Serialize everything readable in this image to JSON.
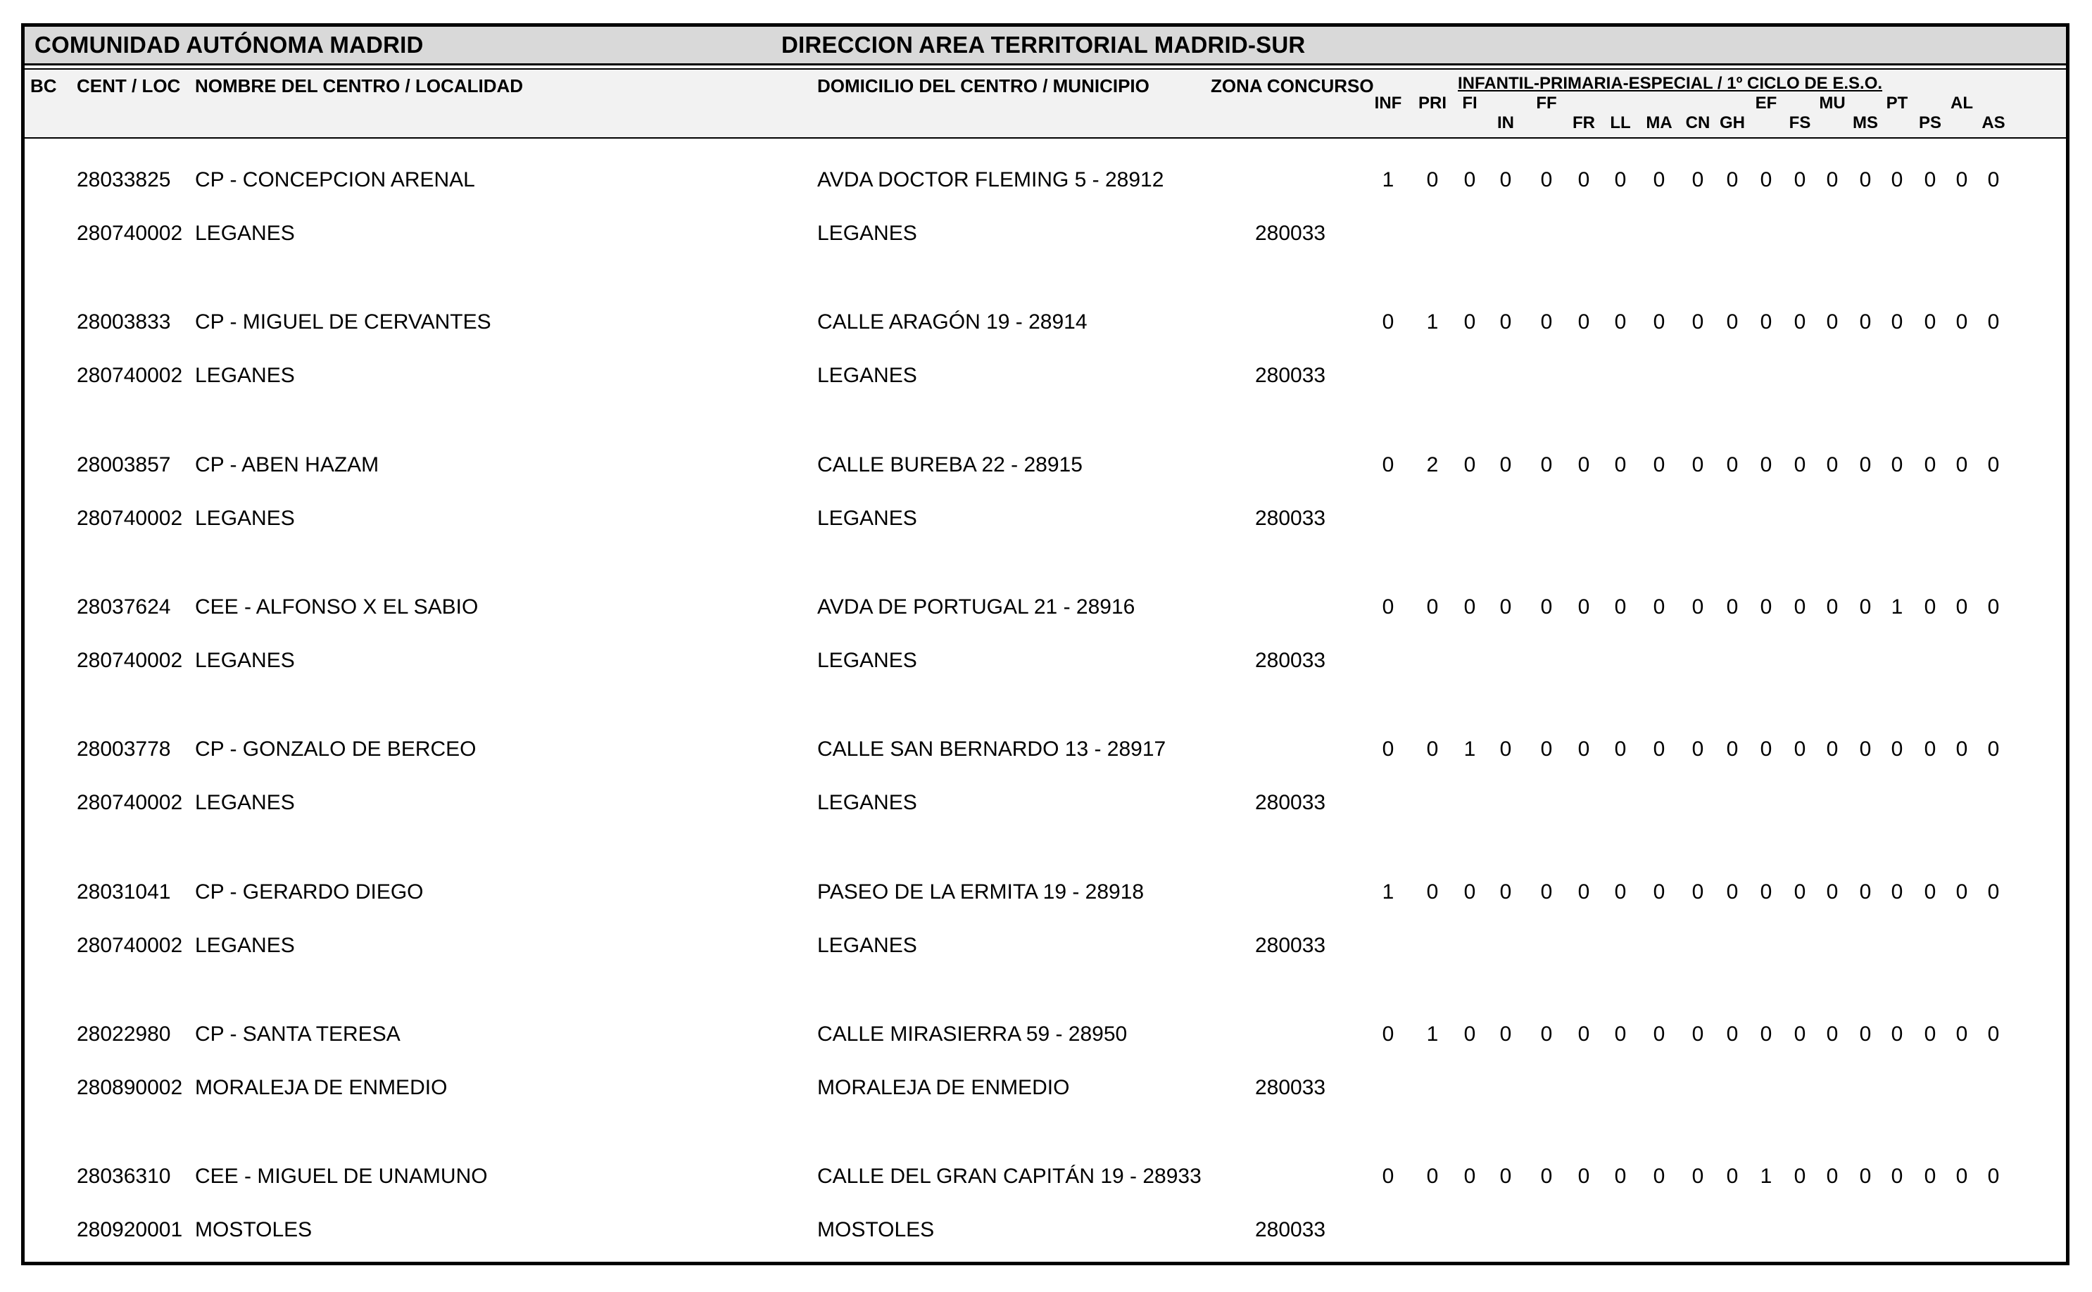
{
  "header": {
    "left_title": "COMUNIDAD AUTÓNOMA MADRID",
    "right_title": "DIRECCION AREA TERRITORIAL MADRID-SUR"
  },
  "columns": {
    "bc": "BC",
    "cent_loc": "CENT / LOC",
    "nombre": "NOMBRE DEL CENTRO / LOCALIDAD",
    "domicilio": "DOMICILIO DEL CENTRO / MUNICIPIO",
    "zona": "ZONA CONCURSO",
    "group_title": "INFANTIL-PRIMARIA-ESPECIAL / 1º CICLO DE E.S.O.",
    "subcolumns": [
      "INF",
      "PRI",
      "FI",
      "IN",
      "FF",
      "FR",
      "LL",
      "MA",
      "CN",
      "GH",
      "EF",
      "FS",
      "MU",
      "MS",
      "PT",
      "PS",
      "AL",
      "AS"
    ]
  },
  "rows": [
    {
      "bc": "",
      "cent": "28033825",
      "nombre": "CP - CONCEPCION ARENAL",
      "loc": "280740002",
      "localidad": "LEGANES",
      "domicilio": "AVDA DOCTOR FLEMING 5 - 28912",
      "municipio": "LEGANES",
      "zona": "280033",
      "values": [
        1,
        0,
        0,
        0,
        0,
        0,
        0,
        0,
        0,
        0,
        0,
        0,
        0,
        0,
        0,
        0,
        0,
        0
      ]
    },
    {
      "bc": "",
      "cent": "28003833",
      "nombre": "CP - MIGUEL DE CERVANTES",
      "loc": "280740002",
      "localidad": "LEGANES",
      "domicilio": "CALLE ARAGÓN 19 - 28914",
      "municipio": "LEGANES",
      "zona": "280033",
      "values": [
        0,
        1,
        0,
        0,
        0,
        0,
        0,
        0,
        0,
        0,
        0,
        0,
        0,
        0,
        0,
        0,
        0,
        0
      ]
    },
    {
      "bc": "",
      "cent": "28003857",
      "nombre": "CP - ABEN HAZAM",
      "loc": "280740002",
      "localidad": "LEGANES",
      "domicilio": "CALLE BUREBA 22 - 28915",
      "municipio": "LEGANES",
      "zona": "280033",
      "values": [
        0,
        2,
        0,
        0,
        0,
        0,
        0,
        0,
        0,
        0,
        0,
        0,
        0,
        0,
        0,
        0,
        0,
        0
      ]
    },
    {
      "bc": "",
      "cent": "28037624",
      "nombre": "CEE - ALFONSO X EL SABIO",
      "loc": "280740002",
      "localidad": "LEGANES",
      "domicilio": "AVDA DE PORTUGAL 21 - 28916",
      "municipio": "LEGANES",
      "zona": "280033",
      "values": [
        0,
        0,
        0,
        0,
        0,
        0,
        0,
        0,
        0,
        0,
        0,
        0,
        0,
        0,
        1,
        0,
        0,
        0
      ]
    },
    {
      "bc": "",
      "cent": "28003778",
      "nombre": "CP - GONZALO DE BERCEO",
      "loc": "280740002",
      "localidad": "LEGANES",
      "domicilio": "CALLE SAN BERNARDO 13 - 28917",
      "municipio": "LEGANES",
      "zona": "280033",
      "values": [
        0,
        0,
        1,
        0,
        0,
        0,
        0,
        0,
        0,
        0,
        0,
        0,
        0,
        0,
        0,
        0,
        0,
        0
      ]
    },
    {
      "bc": "",
      "cent": "28031041",
      "nombre": "CP - GERARDO DIEGO",
      "loc": "280740002",
      "localidad": "LEGANES",
      "domicilio": "PASEO DE LA ERMITA 19 - 28918",
      "municipio": "LEGANES",
      "zona": "280033",
      "values": [
        1,
        0,
        0,
        0,
        0,
        0,
        0,
        0,
        0,
        0,
        0,
        0,
        0,
        0,
        0,
        0,
        0,
        0
      ]
    },
    {
      "bc": "",
      "cent": "28022980",
      "nombre": "CP - SANTA TERESA",
      "loc": "280890002",
      "localidad": "MORALEJA DE ENMEDIO",
      "domicilio": "CALLE MIRASIERRA 59 - 28950",
      "municipio": "MORALEJA DE ENMEDIO",
      "zona": "280033",
      "values": [
        0,
        1,
        0,
        0,
        0,
        0,
        0,
        0,
        0,
        0,
        0,
        0,
        0,
        0,
        0,
        0,
        0,
        0
      ]
    },
    {
      "bc": "",
      "cent": "28036310",
      "nombre": "CEE - MIGUEL DE UNAMUNO",
      "loc": "280920001",
      "localidad": "MOSTOLES",
      "domicilio": "CALLE DEL GRAN CAPITÁN 19 - 28933",
      "municipio": "MOSTOLES",
      "zona": "280033",
      "values": [
        0,
        0,
        0,
        0,
        0,
        0,
        0,
        0,
        0,
        0,
        1,
        0,
        0,
        0,
        0,
        0,
        0,
        0
      ]
    }
  ],
  "colors": {
    "title_band_bg": "#d9d9d9",
    "column_header_bg": "#f2f2f2",
    "border": "#000000"
  }
}
